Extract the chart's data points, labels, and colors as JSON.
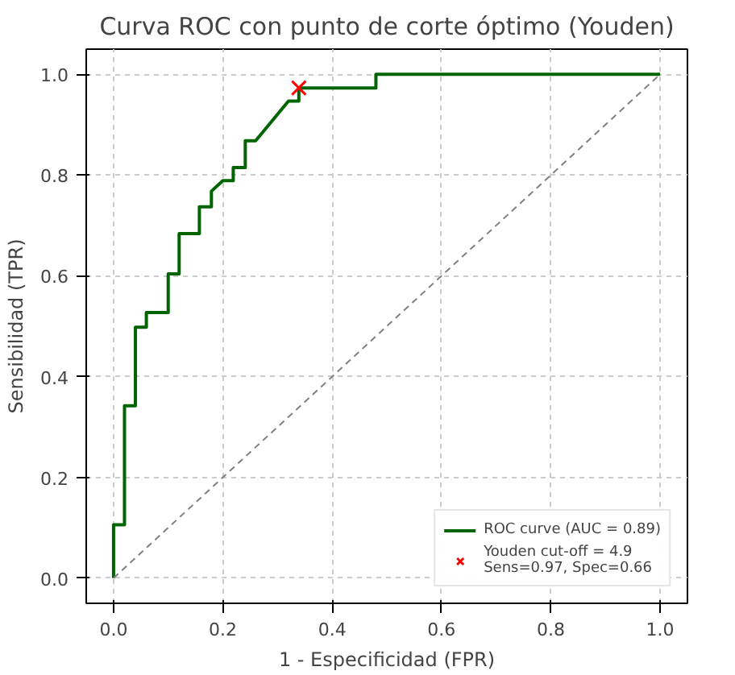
{
  "chart_data": {
    "type": "line",
    "title": "Curva ROC con punto de corte óptimo (Youden)",
    "xlabel": "1 - Especificidad (FPR)",
    "ylabel": "Sensibilidad (TPR)",
    "xlim": [
      -0.05,
      1.05
    ],
    "ylim": [
      -0.05,
      1.05
    ],
    "xticks": [
      {
        "value": 0,
        "label": "0.0"
      },
      0.2,
      0.4,
      0.6,
      0.8,
      {
        "value": 1,
        "label": "1.0"
      }
    ],
    "yticks": [
      {
        "value": 0,
        "label": "0.0"
      },
      0.2,
      0.4,
      0.6,
      0.8,
      {
        "value": 1,
        "label": "1.0"
      }
    ],
    "grid": true,
    "legend": "bottom right",
    "series": [
      {
        "name": "ROC curve (AUC = 0.89)",
        "color": "#006400",
        "line_style": "solid",
        "marker": "none",
        "x": [
          0,
          0,
          0.02,
          0.02,
          0.04,
          0.04,
          0.06,
          0.06,
          0.1,
          0.1,
          0.12,
          0.12,
          0.157,
          0.157,
          0.179,
          0.179,
          0.2,
          0.219,
          0.219,
          0.241,
          0.241,
          0.26,
          0.32,
          0.339,
          0.339,
          0.48,
          0.48,
          1
        ],
        "values": [
          0,
          0.106,
          0.106,
          0.342,
          0.342,
          0.498,
          0.498,
          0.527,
          0.527,
          0.604,
          0.604,
          0.684,
          0.684,
          0.737,
          0.737,
          0.768,
          0.789,
          0.789,
          0.815,
          0.815,
          0.868,
          0.868,
          0.947,
          0.947,
          0.973,
          0.973,
          1,
          1
        ]
      },
      {
        "color": "#808080",
        "line_style": "dashed",
        "marker": "none",
        "x": [
          0,
          1
        ],
        "values": [
          0,
          1
        ]
      },
      {
        "name": "Youden cut-off = 4.9\nSens=0.97, Spec=0.66",
        "type": "scatter",
        "color": "#ff0000",
        "marker": "cross",
        "x": [
          0.339
        ],
        "values": [
          0.973
        ]
      }
    ]
  }
}
